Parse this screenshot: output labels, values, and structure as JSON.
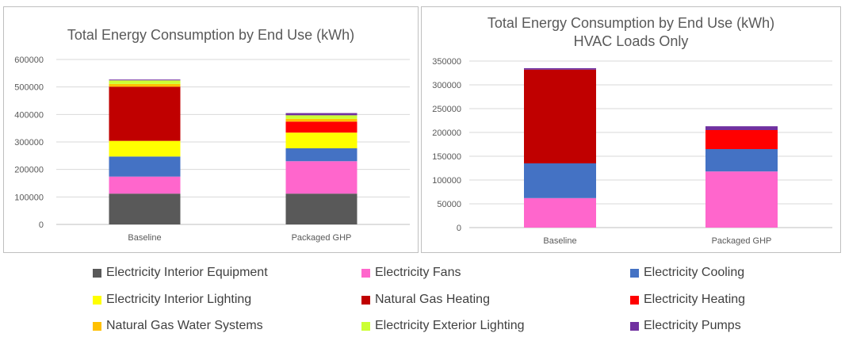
{
  "colors": {
    "Electricity Interior Equipment": "#595959",
    "Electricity Fans": "#ff66cc",
    "Electricity Cooling": "#4472c4",
    "Electricity Interior Lighting": "#ffff00",
    "Natural Gas Heating": "#c00000",
    "Electricity Heating": "#ff0000",
    "Natural Gas Water Systems": "#ffc000",
    "Electricity Exterior Lighting": "#ccff33",
    "Electricity Pumps": "#7030a0"
  },
  "legend": [
    "Electricity Interior Equipment",
    "Electricity Fans",
    "Electricity Cooling",
    "Electricity Interior Lighting",
    "Natural Gas Heating",
    "Electricity Heating",
    "Natural Gas Water Systems",
    "Electricity Exterior Lighting",
    "Electricity Pumps"
  ],
  "chart_data": [
    {
      "type": "bar",
      "stacked": true,
      "title": "Total Energy Consumption by End Use (kWh)",
      "subtitle": "",
      "categories": [
        "Baseline",
        "Packaged GHP"
      ],
      "ylim": [
        0,
        600000
      ],
      "yticks": [
        0,
        100000,
        200000,
        300000,
        400000,
        500000,
        600000
      ],
      "grid": true,
      "series": [
        {
          "name": "Electricity Interior Equipment",
          "values": [
            112000,
            112000
          ]
        },
        {
          "name": "Electricity Fans",
          "values": [
            62000,
            118000
          ]
        },
        {
          "name": "Electricity Cooling",
          "values": [
            73000,
            47000
          ]
        },
        {
          "name": "Electricity Interior Lighting",
          "values": [
            57000,
            57000
          ]
        },
        {
          "name": "Natural Gas Heating",
          "values": [
            197000,
            0
          ]
        },
        {
          "name": "Electricity Heating",
          "values": [
            0,
            40000
          ]
        },
        {
          "name": "Natural Gas Water Systems",
          "values": [
            10000,
            10000
          ]
        },
        {
          "name": "Electricity Exterior Lighting",
          "values": [
            13000,
            13000
          ]
        },
        {
          "name": "Electricity Pumps",
          "values": [
            3000,
            8000
          ]
        }
      ]
    },
    {
      "type": "bar",
      "stacked": true,
      "title": "Total Energy Consumption by End Use (kWh)",
      "subtitle": "HVAC Loads Only",
      "categories": [
        "Baseline",
        "Packaged GHP"
      ],
      "ylim": [
        0,
        350000
      ],
      "yticks": [
        0,
        50000,
        100000,
        150000,
        200000,
        250000,
        300000,
        350000
      ],
      "grid": true,
      "series": [
        {
          "name": "Electricity Fans",
          "values": [
            62000,
            118000
          ]
        },
        {
          "name": "Electricity Cooling",
          "values": [
            73000,
            47000
          ]
        },
        {
          "name": "Natural Gas Heating",
          "values": [
            197000,
            0
          ]
        },
        {
          "name": "Electricity Heating",
          "values": [
            0,
            40000
          ]
        },
        {
          "name": "Electricity Pumps",
          "values": [
            3000,
            8000
          ]
        }
      ]
    }
  ]
}
